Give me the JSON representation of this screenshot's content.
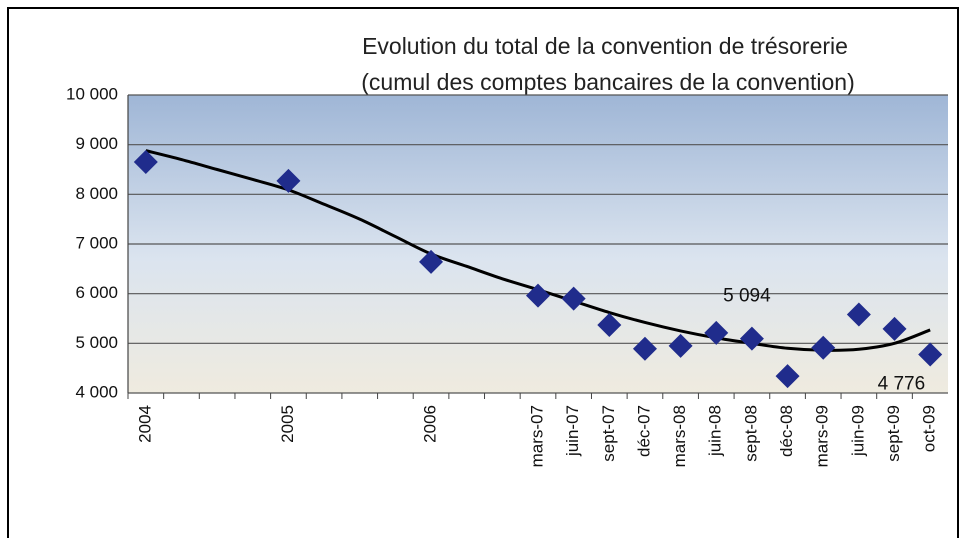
{
  "chart_data": {
    "type": "line",
    "title": "Evolution du total de la convention de trésorerie",
    "subtitle": "(cumul des comptes bancaires de la convention)",
    "categories": [
      "2004",
      null,
      null,
      null,
      "2005",
      null,
      null,
      null,
      "2006",
      null,
      null,
      "mars-07",
      "juin-07",
      "sept-07",
      "déc-07",
      "mars-08",
      "juin-08",
      "sept-08",
      "déc-08",
      "mars-09",
      "juin-09",
      "sept-09",
      "oct-09"
    ],
    "series": [
      {
        "color": "#202c8c",
        "values": [
          8650,
          null,
          null,
          null,
          8270,
          null,
          null,
          null,
          6640,
          null,
          null,
          5960,
          5900,
          5370,
          4890,
          4950,
          5210,
          5094,
          4340,
          4910,
          5580,
          5290,
          4776
        ],
        "value_labels": [
          null,
          null,
          null,
          null,
          null,
          null,
          null,
          null,
          null,
          null,
          null,
          null,
          null,
          null,
          null,
          null,
          null,
          "5 094",
          null,
          null,
          null,
          null,
          "4 776"
        ]
      },
      {
        "color": "#000000",
        "values": [
          8880,
          8700,
          8500,
          8300,
          8090,
          7800,
          7500,
          7150,
          6800,
          6550,
          6300,
          6080,
          5850,
          5620,
          5420,
          5250,
          5110,
          5000,
          4900,
          4860,
          4880,
          5000,
          5270
        ]
      }
    ],
    "ylim": [
      4000,
      10000
    ],
    "yticks": [
      {
        "value": 4000,
        "label": "4 000"
      },
      {
        "value": 5000,
        "label": "5 000"
      },
      {
        "value": 6000,
        "label": "6 000"
      },
      {
        "value": 7000,
        "label": "7 000"
      },
      {
        "value": 8000,
        "label": "8 000"
      },
      {
        "value": 9000,
        "label": "9 000"
      },
      {
        "value": 10000,
        "label": "10 000"
      }
    ],
    "grid": true
  }
}
